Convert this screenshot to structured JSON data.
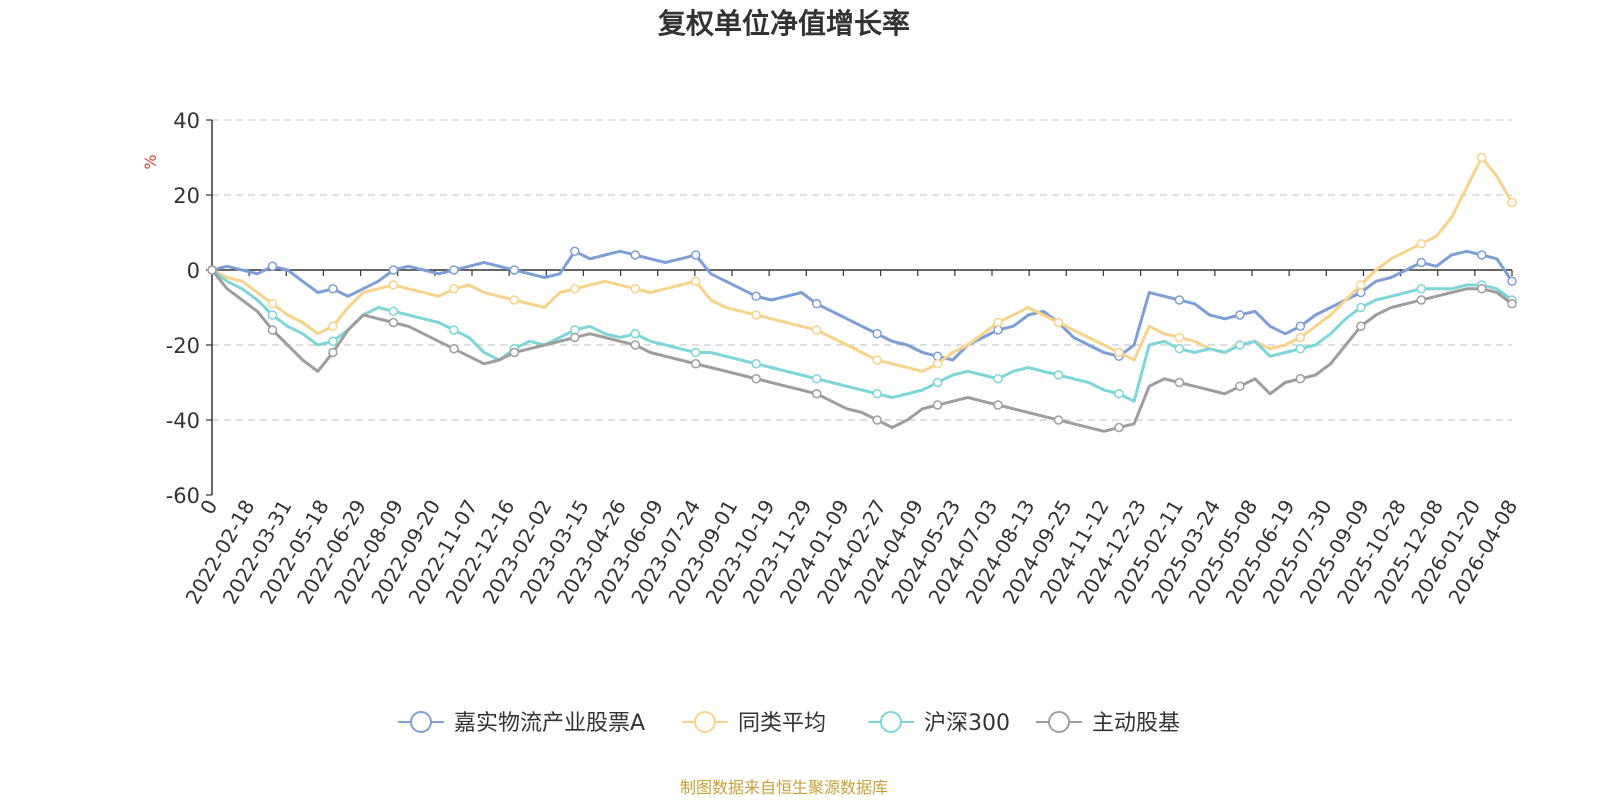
{
  "chart_data": {
    "type": "line",
    "title": "复权单位净值增长率",
    "unit": "%",
    "ylim": [
      -60,
      40
    ],
    "y_ticks": [
      40,
      20,
      0,
      -20,
      -40,
      -60
    ],
    "x_ticks": [
      "0",
      "2022-02-18",
      "2022-03-31",
      "2022-05-18",
      "2022-06-29",
      "2022-08-09",
      "2022-09-20",
      "2022-11-07",
      "2022-12-16",
      "2023-02-02",
      "2023-03-15",
      "2023-04-26",
      "2023-06-09",
      "2023-07-24",
      "2023-09-01",
      "2023-10-19",
      "2023-11-29",
      "2024-01-09",
      "2024-02-27",
      "2024-04-09",
      "2024-05-23",
      "2024-07-03",
      "2024-08-13",
      "2024-09-25",
      "2024-11-12",
      "2024-12-23",
      "2025-02-11",
      "2025-03-24",
      "2025-05-08",
      "2025-06-19",
      "2025-07-30",
      "2025-09-09",
      "2025-10-28",
      "2025-12-08",
      "2026-01-20",
      "2026-04-08"
    ],
    "grid": "dashed-horizontal",
    "legend_position": "bottom",
    "series": [
      {
        "name": "嘉实物流产业股票A",
        "color": "#7d9fd6",
        "values": [
          0,
          1,
          0,
          -1,
          1,
          0,
          -3,
          -6,
          -5,
          -7,
          -5,
          -3,
          0,
          1,
          0,
          -1,
          0,
          1,
          2,
          1,
          0,
          -1,
          -2,
          -1,
          5,
          3,
          4,
          5,
          4,
          3,
          2,
          3,
          4,
          -1,
          -3,
          -5,
          -7,
          -8,
          -7,
          -6,
          -9,
          -11,
          -13,
          -15,
          -17,
          -19,
          -20,
          -22,
          -23,
          -24,
          -20,
          -18,
          -16,
          -15,
          -12,
          -11,
          -14,
          -18,
          -20,
          -22,
          -23,
          -20,
          -6,
          -7,
          -8,
          -9,
          -12,
          -13,
          -12,
          -11,
          -15,
          -17,
          -15,
          -12,
          -10,
          -8,
          -6,
          -3,
          -2,
          0,
          2,
          1,
          4,
          5,
          4,
          3,
          -3
        ]
      },
      {
        "name": "同类平均",
        "color": "#f8d38c",
        "values": [
          0,
          -2,
          -3,
          -6,
          -9,
          -12,
          -14,
          -17,
          -15,
          -10,
          -6,
          -5,
          -4,
          -5,
          -6,
          -7,
          -5,
          -4,
          -6,
          -7,
          -8,
          -9,
          -10,
          -6,
          -5,
          -4,
          -3,
          -4,
          -5,
          -6,
          -5,
          -4,
          -3,
          -8,
          -10,
          -11,
          -12,
          -13,
          -14,
          -15,
          -16,
          -18,
          -20,
          -22,
          -24,
          -25,
          -26,
          -27,
          -25,
          -22,
          -20,
          -17,
          -14,
          -12,
          -10,
          -12,
          -14,
          -16,
          -18,
          -20,
          -22,
          -24,
          -15,
          -17,
          -18,
          -19,
          -21,
          -22,
          -20,
          -19,
          -21,
          -20,
          -18,
          -15,
          -12,
          -8,
          -4,
          0,
          3,
          5,
          7,
          9,
          14,
          22,
          30,
          25,
          18
        ]
      },
      {
        "name": "沪深300",
        "color": "#7fd6d8",
        "values": [
          0,
          -3,
          -5,
          -8,
          -12,
          -15,
          -17,
          -20,
          -19,
          -16,
          -12,
          -10,
          -11,
          -12,
          -13,
          -14,
          -16,
          -18,
          -22,
          -24,
          -21,
          -19,
          -20,
          -18,
          -16,
          -15,
          -17,
          -18,
          -17,
          -19,
          -20,
          -21,
          -22,
          -22,
          -23,
          -24,
          -25,
          -26,
          -27,
          -28,
          -29,
          -30,
          -31,
          -32,
          -33,
          -34,
          -33,
          -32,
          -30,
          -28,
          -27,
          -28,
          -29,
          -27,
          -26,
          -27,
          -28,
          -29,
          -30,
          -32,
          -33,
          -35,
          -20,
          -19,
          -21,
          -22,
          -21,
          -22,
          -20,
          -19,
          -23,
          -22,
          -21,
          -20,
          -17,
          -13,
          -10,
          -8,
          -7,
          -6,
          -5,
          -5,
          -5,
          -4,
          -4,
          -5,
          -8
        ]
      },
      {
        "name": "主动股基",
        "color": "#9e9e9e",
        "values": [
          0,
          -5,
          -8,
          -11,
          -16,
          -20,
          -24,
          -27,
          -22,
          -16,
          -12,
          -13,
          -14,
          -15,
          -17,
          -19,
          -21,
          -23,
          -25,
          -24,
          -22,
          -21,
          -20,
          -19,
          -18,
          -17,
          -18,
          -19,
          -20,
          -22,
          -23,
          -24,
          -25,
          -26,
          -27,
          -28,
          -29,
          -30,
          -31,
          -32,
          -33,
          -35,
          -37,
          -38,
          -40,
          -42,
          -40,
          -37,
          -36,
          -35,
          -34,
          -35,
          -36,
          -37,
          -38,
          -39,
          -40,
          -41,
          -42,
          -43,
          -42,
          -41,
          -31,
          -29,
          -30,
          -31,
          -32,
          -33,
          -31,
          -29,
          -33,
          -30,
          -29,
          -28,
          -25,
          -20,
          -15,
          -12,
          -10,
          -9,
          -8,
          -7,
          -6,
          -5,
          -5,
          -6,
          -9
        ]
      }
    ]
  },
  "source": {
    "text": "制图数据来自恒生聚源数据库",
    "color": "#c9a13c"
  },
  "colors": {
    "unit": "#e03c3c",
    "axis": "#333333",
    "grid": "#cccccc"
  }
}
